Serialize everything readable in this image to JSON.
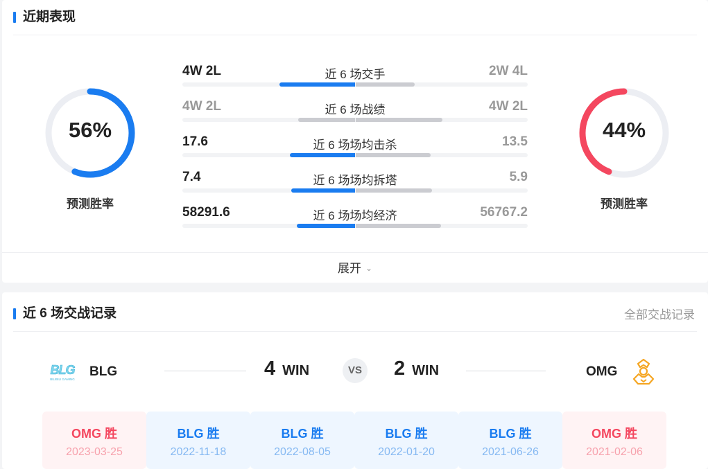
{
  "recent": {
    "title": "近期表现",
    "left_gauge": {
      "percent": 56,
      "value_text": "56%",
      "label": "预测胜率",
      "color": "#1a7cf0"
    },
    "right_gauge": {
      "percent": 44,
      "value_text": "44%",
      "label": "预测胜率",
      "color": "#f4475f"
    },
    "stats": [
      {
        "left": "4W 2L",
        "label": "近 6 场交手",
        "right": "2W 4L",
        "left_fill": 0.66,
        "right_fill": 0.34,
        "left_color": "#1a7cf0",
        "right_color": "#cbccd1",
        "left_muted": false
      },
      {
        "left": "4W 2L",
        "label": "近 6 场战绩",
        "right": "4W 2L",
        "left_fill": 0.5,
        "right_fill": 0.5,
        "left_color": "#cbccd1",
        "right_color": "#cbccd1",
        "left_muted": true
      },
      {
        "left": "17.6",
        "label": "近 6 场场均击杀",
        "right": "13.5",
        "left_fill": 0.57,
        "right_fill": 0.43,
        "left_color": "#1a7cf0",
        "right_color": "#cbccd1",
        "left_muted": false
      },
      {
        "left": "7.4",
        "label": "近 6 场场均拆塔",
        "right": "5.9",
        "left_fill": 0.56,
        "right_fill": 0.44,
        "left_color": "#1a7cf0",
        "right_color": "#cbccd1",
        "left_muted": false
      },
      {
        "left": "58291.6",
        "label": "近 6 场场均经济",
        "right": "56767.2",
        "left_fill": 0.51,
        "right_fill": 0.49,
        "left_color": "#1a7cf0",
        "right_color": "#cbccd1",
        "left_muted": false
      }
    ],
    "expand_label": "展开"
  },
  "h2h": {
    "title": "近 6 场交战记录",
    "all_link": "全部交战记录",
    "team_left": {
      "name": "BLG",
      "wins": "4",
      "win_label": "WIN",
      "logo_text": "BILIBILI GAMING"
    },
    "team_right": {
      "name": "OMG",
      "wins": "2",
      "win_label": "WIN"
    },
    "vs": "VS",
    "matches": [
      {
        "result": "OMG 胜",
        "date": "2023-03-25",
        "winner": "red"
      },
      {
        "result": "BLG 胜",
        "date": "2022-11-18",
        "winner": "blue"
      },
      {
        "result": "BLG 胜",
        "date": "2022-08-05",
        "winner": "blue"
      },
      {
        "result": "BLG 胜",
        "date": "2022-01-20",
        "winner": "blue"
      },
      {
        "result": "BLG 胜",
        "date": "2021-06-26",
        "winner": "blue"
      },
      {
        "result": "OMG 胜",
        "date": "2021-02-06",
        "winner": "red"
      }
    ]
  }
}
